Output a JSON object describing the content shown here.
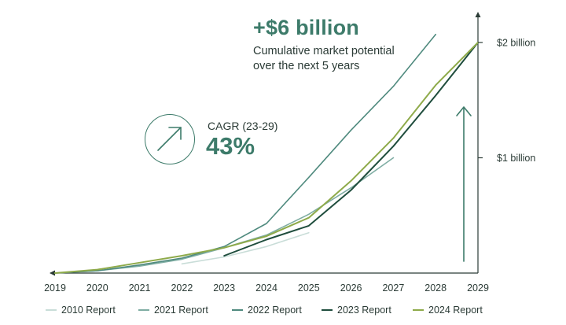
{
  "headline": {
    "value": "+$6 billion",
    "subtitle_line1": "Cumulative market potential",
    "subtitle_line2": "over the next 5 years"
  },
  "cagr": {
    "label": "CAGR (23-29)",
    "value": "43%",
    "icon": "arrow-up-right-icon"
  },
  "growth_arrow_icon": "arrow-up-icon",
  "chart_data": {
    "type": "line",
    "title": "",
    "xlabel": "",
    "ylabel": "",
    "x": [
      "2019",
      "2020",
      "2021",
      "2022",
      "2023",
      "2024",
      "2025",
      "2026",
      "2027",
      "2028",
      "2029"
    ],
    "ylim": [
      0,
      2
    ],
    "y_ticks": [
      {
        "value": 1,
        "label": "$1 billion"
      },
      {
        "value": 2,
        "label": "$2 billion"
      }
    ],
    "grid": false,
    "legend_position": "bottom",
    "series": [
      {
        "name": "2010 Report",
        "color": "#c9ddd8",
        "width": 1.6,
        "points": [
          [
            "2022",
            0.08
          ],
          [
            "2023",
            0.14
          ],
          [
            "2024",
            0.23
          ],
          [
            "2025",
            0.35
          ]
        ]
      },
      {
        "name": "2021 Report",
        "color": "#7fada3",
        "width": 1.6,
        "points": [
          [
            "2019",
            0.0
          ],
          [
            "2020",
            0.02
          ],
          [
            "2021",
            0.06
          ],
          [
            "2022",
            0.12
          ],
          [
            "2023",
            0.22
          ],
          [
            "2024",
            0.33
          ],
          [
            "2025",
            0.51
          ],
          [
            "2026",
            0.74
          ],
          [
            "2027",
            1.0
          ]
        ]
      },
      {
        "name": "2022 Report",
        "color": "#4f8a7e",
        "width": 1.6,
        "points": [
          [
            "2019",
            0.0
          ],
          [
            "2020",
            0.02
          ],
          [
            "2021",
            0.07
          ],
          [
            "2022",
            0.13
          ],
          [
            "2023",
            0.23
          ],
          [
            "2024",
            0.43
          ],
          [
            "2025",
            0.83
          ],
          [
            "2026",
            1.24
          ],
          [
            "2027",
            1.62
          ],
          [
            "2028",
            2.07
          ]
        ]
      },
      {
        "name": "2023 Report",
        "color": "#1f4d3d",
        "width": 2.0,
        "points": [
          [
            "2023",
            0.15
          ],
          [
            "2024",
            0.29
          ],
          [
            "2025",
            0.41
          ],
          [
            "2026",
            0.72
          ],
          [
            "2027",
            1.1
          ],
          [
            "2028",
            1.54
          ],
          [
            "2029",
            2.0
          ]
        ]
      },
      {
        "name": "2024 Report",
        "color": "#8eaa4a",
        "width": 2.0,
        "points": [
          [
            "2019",
            0.0
          ],
          [
            "2020",
            0.03
          ],
          [
            "2021",
            0.09
          ],
          [
            "2022",
            0.15
          ],
          [
            "2023",
            0.22
          ],
          [
            "2024",
            0.32
          ],
          [
            "2025",
            0.48
          ],
          [
            "2026",
            0.8
          ],
          [
            "2027",
            1.17
          ],
          [
            "2028",
            1.63
          ],
          [
            "2029",
            2.0
          ]
        ]
      }
    ]
  }
}
